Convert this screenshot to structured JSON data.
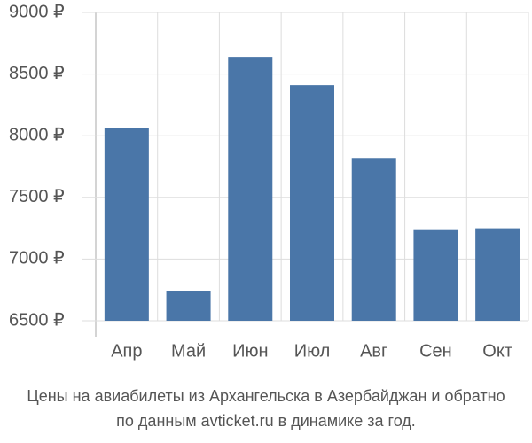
{
  "chart_data": {
    "type": "bar",
    "title": "Цены на авиабилеты из Архангельска в Азербайджан и обратно",
    "subtitle": "по данным avticket.ru в динамике за год.",
    "categories": [
      "Апр",
      "Май",
      "Июн",
      "Июл",
      "Авг",
      "Сен",
      "Окт"
    ],
    "values": [
      8060,
      6740,
      8640,
      8410,
      7820,
      7235,
      7250
    ],
    "color": "#4a76a8",
    "ylim": [
      6500,
      9000
    ],
    "yticks": [
      {
        "value": 6500,
        "label": "6500 ₽"
      },
      {
        "value": 7000,
        "label": "7000 ₽"
      },
      {
        "value": 7500,
        "label": "7500 ₽"
      },
      {
        "value": 8000,
        "label": "8000 ₽"
      },
      {
        "value": 8500,
        "label": "8500 ₽"
      },
      {
        "value": 9000,
        "label": "9000 ₽"
      }
    ],
    "grid": true
  }
}
